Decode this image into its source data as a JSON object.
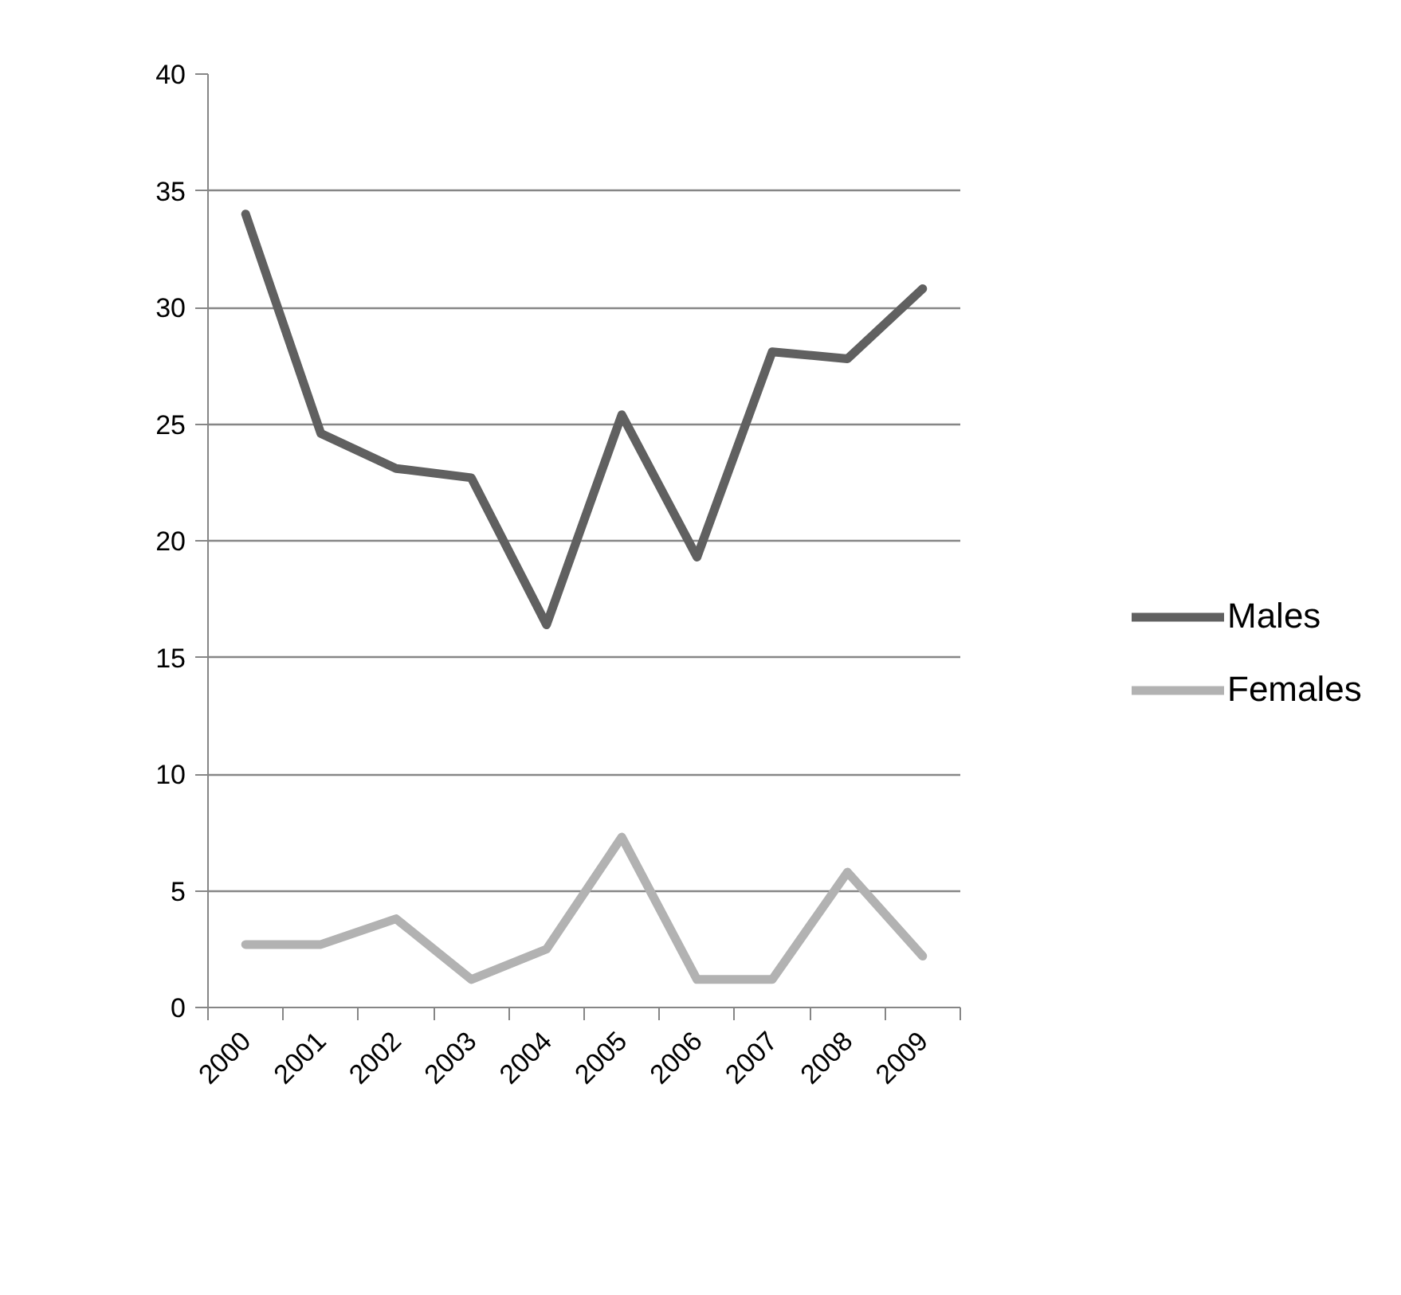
{
  "chart_data": {
    "type": "line",
    "categories": [
      "2000",
      "2001",
      "2002",
      "2003",
      "2004",
      "2005",
      "2006",
      "2007",
      "2008",
      "2009"
    ],
    "ylim": [
      0,
      40
    ],
    "yticks": [
      0,
      5,
      10,
      15,
      20,
      25,
      30,
      35,
      40
    ],
    "grid": "y",
    "legend": "right",
    "line_style": "solid",
    "series": [
      {
        "name": "Males",
        "color": "#606060",
        "values": [
          34,
          24.6,
          23.1,
          22.7,
          16.4,
          25.4,
          19.3,
          28.1,
          27.8,
          30.8
        ]
      },
      {
        "name": "Females",
        "color": "#b2b2b2",
        "values": [
          2.7,
          2.7,
          3.8,
          1.2,
          2.5,
          7.3,
          1.2,
          1.2,
          5.8,
          2.2
        ]
      }
    ]
  }
}
